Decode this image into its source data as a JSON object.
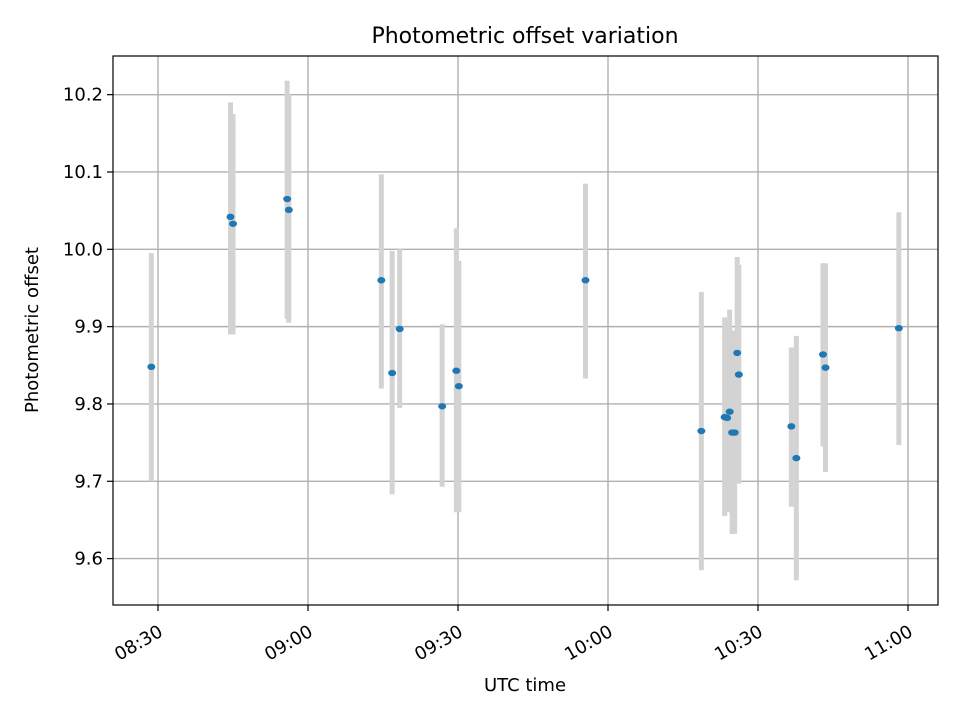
{
  "chart_data": {
    "type": "scatter",
    "title": "Photometric offset variation",
    "xlabel": "UTC time",
    "ylabel": "Photometric offset",
    "x_axis": {
      "kind": "time",
      "range": [
        "08:21",
        "11:06"
      ],
      "ticks": [
        "08:30",
        "09:00",
        "09:30",
        "10:00",
        "10:30",
        "11:00"
      ]
    },
    "y_axis": {
      "range": [
        9.54,
        10.25
      ],
      "ticks": [
        "9.6",
        "9.7",
        "9.8",
        "9.9",
        "10.0",
        "10.1",
        "10.2"
      ]
    },
    "grid": true,
    "colors": {
      "point": "#1f77b4",
      "errorbar": "#d3d3d3",
      "grid": "#b0b0b0"
    },
    "points": [
      {
        "x": "08:28:40",
        "y": 9.848,
        "yerr_low": 9.7,
        "yerr_high": 9.995
      },
      {
        "x": "08:44:30",
        "y": 10.042,
        "yerr_low": 9.89,
        "yerr_high": 10.19
      },
      {
        "x": "08:45:00",
        "y": 10.033,
        "yerr_low": 9.89,
        "yerr_high": 10.175
      },
      {
        "x": "08:55:50",
        "y": 10.065,
        "yerr_low": 9.91,
        "yerr_high": 10.218
      },
      {
        "x": "08:56:10",
        "y": 10.051,
        "yerr_low": 9.905,
        "yerr_high": 10.2
      },
      {
        "x": "09:14:40",
        "y": 9.96,
        "yerr_low": 9.82,
        "yerr_high": 10.097
      },
      {
        "x": "09:16:50",
        "y": 9.84,
        "yerr_low": 9.683,
        "yerr_high": 9.998
      },
      {
        "x": "09:18:20",
        "y": 9.897,
        "yerr_low": 9.795,
        "yerr_high": 10.0
      },
      {
        "x": "09:26:50",
        "y": 9.797,
        "yerr_low": 9.693,
        "yerr_high": 9.903
      },
      {
        "x": "09:29:40",
        "y": 9.843,
        "yerr_low": 9.66,
        "yerr_high": 10.027
      },
      {
        "x": "09:30:10",
        "y": 9.823,
        "yerr_low": 9.66,
        "yerr_high": 9.985
      },
      {
        "x": "09:55:30",
        "y": 9.96,
        "yerr_low": 9.833,
        "yerr_high": 10.085
      },
      {
        "x": "10:18:40",
        "y": 9.765,
        "yerr_low": 9.585,
        "yerr_high": 9.945
      },
      {
        "x": "10:23:20",
        "y": 9.783,
        "yerr_low": 9.655,
        "yerr_high": 9.912
      },
      {
        "x": "10:23:50",
        "y": 9.782,
        "yerr_low": 9.66,
        "yerr_high": 9.908
      },
      {
        "x": "10:24:20",
        "y": 9.79,
        "yerr_low": 9.66,
        "yerr_high": 9.922
      },
      {
        "x": "10:24:50",
        "y": 9.763,
        "yerr_low": 9.632,
        "yerr_high": 9.895
      },
      {
        "x": "10:25:20",
        "y": 9.763,
        "yerr_low": 9.632,
        "yerr_high": 9.895
      },
      {
        "x": "10:25:50",
        "y": 9.866,
        "yerr_low": 9.74,
        "yerr_high": 9.99
      },
      {
        "x": "10:26:10",
        "y": 9.838,
        "yerr_low": 9.697,
        "yerr_high": 9.98
      },
      {
        "x": "10:36:40",
        "y": 9.771,
        "yerr_low": 9.667,
        "yerr_high": 9.873
      },
      {
        "x": "10:37:40",
        "y": 9.73,
        "yerr_low": 9.572,
        "yerr_high": 9.888
      },
      {
        "x": "10:43:00",
        "y": 9.864,
        "yerr_low": 9.745,
        "yerr_high": 9.982
      },
      {
        "x": "10:43:30",
        "y": 9.847,
        "yerr_low": 9.712,
        "yerr_high": 9.982
      },
      {
        "x": "10:58:10",
        "y": 9.898,
        "yerr_low": 9.747,
        "yerr_high": 10.048
      }
    ]
  }
}
